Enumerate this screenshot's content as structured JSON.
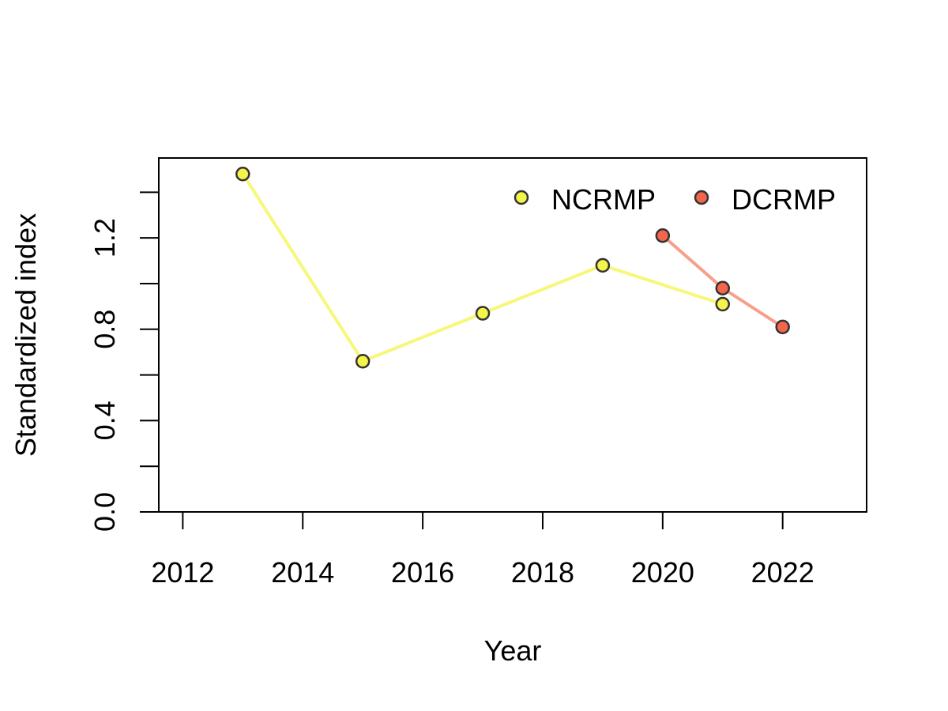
{
  "chart_data": {
    "type": "line",
    "title": "",
    "xlabel": "Year",
    "ylabel": "Standardized index",
    "xlim": [
      2011.6,
      2023.4
    ],
    "ylim": [
      0.0,
      1.55
    ],
    "x_ticks": [
      2012,
      2014,
      2016,
      2018,
      2020,
      2022
    ],
    "x_tick_labels": [
      "2012",
      "2014",
      "2016",
      "2018",
      "2020",
      "2022"
    ],
    "y_ticks": [
      0.0,
      0.2,
      0.4,
      0.6,
      0.8,
      1.0,
      1.2,
      1.4
    ],
    "y_tick_labels": [
      "0.0",
      "",
      "0.4",
      "",
      "0.8",
      "",
      "1.2",
      ""
    ],
    "grid": false,
    "legend_position": "top-right",
    "series": [
      {
        "name": "NCRMP",
        "x": [
          2013,
          2015,
          2017,
          2019,
          2021
        ],
        "y": [
          1.48,
          0.66,
          0.87,
          1.08,
          0.91
        ],
        "line_color": "#F7F77A",
        "point_color": "#F4F449"
      },
      {
        "name": "DCRMP",
        "x": [
          2020,
          2021,
          2022
        ],
        "y": [
          1.21,
          0.98,
          0.81
        ],
        "line_color": "#F6A08C",
        "point_color": "#F4664A"
      }
    ]
  }
}
